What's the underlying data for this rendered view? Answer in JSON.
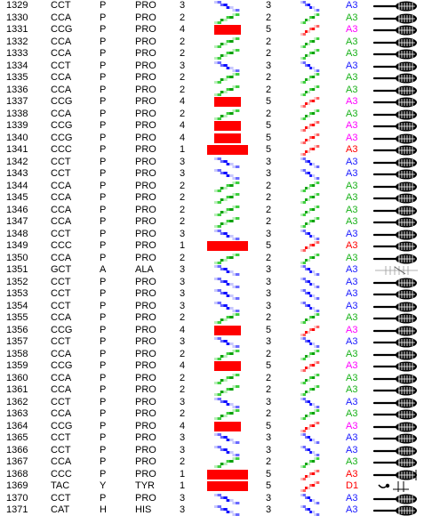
{
  "colors": {
    "A3_blue": "#1a1aff",
    "A3_green": "#19b219",
    "A3_magenta": "#ff00ff",
    "A3_red": "#ff0000",
    "D1_red": "#ff0000",
    "bar": "#ff0000"
  },
  "rows": [
    {
      "num": "1329",
      "codon": "CCT",
      "aa": "P",
      "res": "PRO",
      "n1": "3",
      "n2": "3",
      "label": "A3",
      "labelColor": "#1a1aff",
      "g1": "blue",
      "g2": "blue",
      "bar": 0
    },
    {
      "num": "1330",
      "codon": "CCA",
      "aa": "P",
      "res": "PRO",
      "n1": "2",
      "n2": "2",
      "label": "A3",
      "labelColor": "#19b219",
      "g1": "green",
      "g2": "green",
      "bar": 0
    },
    {
      "num": "1331",
      "codon": "CCG",
      "aa": "P",
      "res": "PRO",
      "n1": "4",
      "n2": "5",
      "label": "A3",
      "labelColor": "#ff00ff",
      "g1": "none",
      "g2": "red",
      "bar": 1
    },
    {
      "num": "1332",
      "codon": "CCA",
      "aa": "P",
      "res": "PRO",
      "n1": "2",
      "n2": "2",
      "label": "A3",
      "labelColor": "#19b219",
      "g1": "green",
      "g2": "green",
      "bar": 0
    },
    {
      "num": "1333",
      "codon": "CCA",
      "aa": "P",
      "res": "PRO",
      "n1": "2",
      "n2": "2",
      "label": "A3",
      "labelColor": "#19b219",
      "g1": "green",
      "g2": "green",
      "bar": 0
    },
    {
      "num": "1334",
      "codon": "CCT",
      "aa": "P",
      "res": "PRO",
      "n1": "3",
      "n2": "3",
      "label": "A3",
      "labelColor": "#1a1aff",
      "g1": "blue",
      "g2": "blue",
      "bar": 0
    },
    {
      "num": "1335",
      "codon": "CCA",
      "aa": "P",
      "res": "PRO",
      "n1": "2",
      "n2": "2",
      "label": "A3",
      "labelColor": "#19b219",
      "g1": "green",
      "g2": "green",
      "bar": 0
    },
    {
      "num": "1336",
      "codon": "CCA",
      "aa": "P",
      "res": "PRO",
      "n1": "2",
      "n2": "2",
      "label": "A3",
      "labelColor": "#19b219",
      "g1": "green",
      "g2": "green",
      "bar": 0
    },
    {
      "num": "1337",
      "codon": "CCG",
      "aa": "P",
      "res": "PRO",
      "n1": "4",
      "n2": "5",
      "label": "A3",
      "labelColor": "#ff00ff",
      "g1": "none",
      "g2": "red",
      "bar": 1
    },
    {
      "num": "1338",
      "codon": "CCA",
      "aa": "P",
      "res": "PRO",
      "n1": "2",
      "n2": "2",
      "label": "A3",
      "labelColor": "#19b219",
      "g1": "green",
      "g2": "green",
      "bar": 0
    },
    {
      "num": "1339",
      "codon": "CCG",
      "aa": "P",
      "res": "PRO",
      "n1": "4",
      "n2": "5",
      "label": "A3",
      "labelColor": "#ff00ff",
      "g1": "none",
      "g2": "red",
      "bar": 1
    },
    {
      "num": "1340",
      "codon": "CCG",
      "aa": "P",
      "res": "PRO",
      "n1": "4",
      "n2": "5",
      "label": "A3",
      "labelColor": "#ff00ff",
      "g1": "none",
      "g2": "red",
      "bar": 1
    },
    {
      "num": "1341",
      "codon": "CCC",
      "aa": "P",
      "res": "PRO",
      "n1": "1",
      "n2": "5",
      "label": "A3",
      "labelColor": "#ff0000",
      "g1": "none",
      "g2": "red",
      "bar": 2
    },
    {
      "num": "1342",
      "codon": "CCT",
      "aa": "P",
      "res": "PRO",
      "n1": "3",
      "n2": "3",
      "label": "A3",
      "labelColor": "#1a1aff",
      "g1": "blue",
      "g2": "blue",
      "bar": 0
    },
    {
      "num": "1343",
      "codon": "CCT",
      "aa": "P",
      "res": "PRO",
      "n1": "3",
      "n2": "3",
      "label": "A3",
      "labelColor": "#1a1aff",
      "g1": "blue",
      "g2": "blue",
      "bar": 0
    },
    {
      "num": "1344",
      "codon": "CCA",
      "aa": "P",
      "res": "PRO",
      "n1": "2",
      "n2": "2",
      "label": "A3",
      "labelColor": "#19b219",
      "g1": "green",
      "g2": "green",
      "bar": 0
    },
    {
      "num": "1345",
      "codon": "CCA",
      "aa": "P",
      "res": "PRO",
      "n1": "2",
      "n2": "2",
      "label": "A3",
      "labelColor": "#19b219",
      "g1": "green",
      "g2": "green",
      "bar": 0
    },
    {
      "num": "1346",
      "codon": "CCA",
      "aa": "P",
      "res": "PRO",
      "n1": "2",
      "n2": "2",
      "label": "A3",
      "labelColor": "#19b219",
      "g1": "green",
      "g2": "green",
      "bar": 0
    },
    {
      "num": "1347",
      "codon": "CCA",
      "aa": "P",
      "res": "PRO",
      "n1": "2",
      "n2": "2",
      "label": "A3",
      "labelColor": "#19b219",
      "g1": "green",
      "g2": "green",
      "bar": 0
    },
    {
      "num": "1348",
      "codon": "CCT",
      "aa": "P",
      "res": "PRO",
      "n1": "3",
      "n2": "3",
      "label": "A3",
      "labelColor": "#1a1aff",
      "g1": "blue",
      "g2": "blue",
      "bar": 0
    },
    {
      "num": "1349",
      "codon": "CCC",
      "aa": "P",
      "res": "PRO",
      "n1": "1",
      "n2": "5",
      "label": "A3",
      "labelColor": "#ff0000",
      "g1": "none",
      "g2": "red",
      "bar": 2
    },
    {
      "num": "1350",
      "codon": "CCA",
      "aa": "P",
      "res": "PRO",
      "n1": "2",
      "n2": "2",
      "label": "A3",
      "labelColor": "#19b219",
      "g1": "green",
      "g2": "green",
      "bar": 0
    },
    {
      "num": "1351",
      "codon": "GCT",
      "aa": "A",
      "res": "ALA",
      "n1": "3",
      "n2": "3",
      "label": "A3",
      "labelColor": "#1a1aff",
      "g1": "blue",
      "g2": "blue",
      "bar": 0,
      "tool": "alt"
    },
    {
      "num": "1352",
      "codon": "CCT",
      "aa": "P",
      "res": "PRO",
      "n1": "3",
      "n2": "3",
      "label": "A3",
      "labelColor": "#1a1aff",
      "g1": "blue",
      "g2": "blue",
      "bar": 0
    },
    {
      "num": "1353",
      "codon": "CCT",
      "aa": "P",
      "res": "PRO",
      "n1": "3",
      "n2": "3",
      "label": "A3",
      "labelColor": "#1a1aff",
      "g1": "blue",
      "g2": "blue",
      "bar": 0
    },
    {
      "num": "1354",
      "codon": "CCT",
      "aa": "P",
      "res": "PRO",
      "n1": "3",
      "n2": "3",
      "label": "A3",
      "labelColor": "#1a1aff",
      "g1": "blue",
      "g2": "blue",
      "bar": 0
    },
    {
      "num": "1355",
      "codon": "CCA",
      "aa": "P",
      "res": "PRO",
      "n1": "2",
      "n2": "2",
      "label": "A3",
      "labelColor": "#19b219",
      "g1": "green",
      "g2": "green",
      "bar": 0
    },
    {
      "num": "1356",
      "codon": "CCG",
      "aa": "P",
      "res": "PRO",
      "n1": "4",
      "n2": "5",
      "label": "A3",
      "labelColor": "#ff00ff",
      "g1": "none",
      "g2": "red",
      "bar": 1
    },
    {
      "num": "1357",
      "codon": "CCT",
      "aa": "P",
      "res": "PRO",
      "n1": "3",
      "n2": "3",
      "label": "A3",
      "labelColor": "#1a1aff",
      "g1": "blue",
      "g2": "blue",
      "bar": 0
    },
    {
      "num": "1358",
      "codon": "CCA",
      "aa": "P",
      "res": "PRO",
      "n1": "2",
      "n2": "2",
      "label": "A3",
      "labelColor": "#19b219",
      "g1": "green",
      "g2": "green",
      "bar": 0
    },
    {
      "num": "1359",
      "codon": "CCG",
      "aa": "P",
      "res": "PRO",
      "n1": "4",
      "n2": "5",
      "label": "A3",
      "labelColor": "#ff00ff",
      "g1": "none",
      "g2": "red",
      "bar": 1
    },
    {
      "num": "1360",
      "codon": "CCA",
      "aa": "P",
      "res": "PRO",
      "n1": "2",
      "n2": "2",
      "label": "A3",
      "labelColor": "#19b219",
      "g1": "green",
      "g2": "green",
      "bar": 0
    },
    {
      "num": "1361",
      "codon": "CCA",
      "aa": "P",
      "res": "PRO",
      "n1": "2",
      "n2": "2",
      "label": "A3",
      "labelColor": "#19b219",
      "g1": "green",
      "g2": "green",
      "bar": 0
    },
    {
      "num": "1362",
      "codon": "CCT",
      "aa": "P",
      "res": "PRO",
      "n1": "3",
      "n2": "3",
      "label": "A3",
      "labelColor": "#1a1aff",
      "g1": "blue",
      "g2": "blue",
      "bar": 0
    },
    {
      "num": "1363",
      "codon": "CCA",
      "aa": "P",
      "res": "PRO",
      "n1": "2",
      "n2": "2",
      "label": "A3",
      "labelColor": "#19b219",
      "g1": "green",
      "g2": "green",
      "bar": 0
    },
    {
      "num": "1364",
      "codon": "CCG",
      "aa": "P",
      "res": "PRO",
      "n1": "4",
      "n2": "5",
      "label": "A3",
      "labelColor": "#ff00ff",
      "g1": "none",
      "g2": "red",
      "bar": 1
    },
    {
      "num": "1365",
      "codon": "CCT",
      "aa": "P",
      "res": "PRO",
      "n1": "3",
      "n2": "3",
      "label": "A3",
      "labelColor": "#1a1aff",
      "g1": "blue",
      "g2": "blue",
      "bar": 0
    },
    {
      "num": "1366",
      "codon": "CCT",
      "aa": "P",
      "res": "PRO",
      "n1": "3",
      "n2": "3",
      "label": "A3",
      "labelColor": "#1a1aff",
      "g1": "blue",
      "g2": "blue",
      "bar": 0
    },
    {
      "num": "1367",
      "codon": "CCA",
      "aa": "P",
      "res": "PRO",
      "n1": "2",
      "n2": "2",
      "label": "A3",
      "labelColor": "#19b219",
      "g1": "green",
      "g2": "green",
      "bar": 0
    },
    {
      "num": "1368",
      "codon": "CCC",
      "aa": "P",
      "res": "PRO",
      "n1": "1",
      "n2": "5",
      "label": "A3",
      "labelColor": "#ff0000",
      "g1": "none",
      "g2": "red",
      "bar": 3,
      "tool": "end"
    },
    {
      "num": "1369",
      "codon": "TAC",
      "aa": "Y",
      "res": "TYR",
      "n1": "1",
      "n2": "5",
      "label": "D1",
      "labelColor": "#ff0000",
      "g1": "none",
      "g2": "red",
      "bar": 3,
      "tool": "hook"
    },
    {
      "num": "1370",
      "codon": "CCT",
      "aa": "P",
      "res": "PRO",
      "n1": "3",
      "n2": "3",
      "label": "A3",
      "labelColor": "#1a1aff",
      "g1": "blue",
      "g2": "blue",
      "bar": 0
    },
    {
      "num": "1371",
      "codon": "CAT",
      "aa": "H",
      "res": "HIS",
      "n1": "3",
      "n2": "3",
      "label": "A3",
      "labelColor": "#1a1aff",
      "g1": "blue",
      "g2": "blue",
      "bar": 0
    }
  ]
}
